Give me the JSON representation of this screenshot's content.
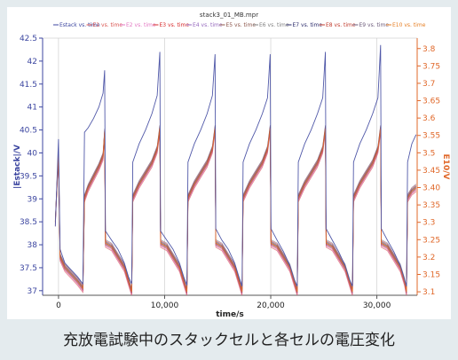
{
  "figure": {
    "caption": "充放電試験中のスタックセルと各セルの電圧変化"
  },
  "colors": {
    "left_axis": "#3c46a0",
    "right_axis": "#e0682a",
    "stack_line": "#5058a8",
    "grid": "#c8c8c8"
  },
  "chart_data": {
    "type": "line",
    "title": "stack3_01_MB.mpr",
    "xlabel": "time/s",
    "ylabel": "|Estack|/V",
    "y2label": "E10/V",
    "xlim": [
      -1500,
      33800
    ],
    "ylim": [
      36.9,
      42.5
    ],
    "y2lim": [
      3.09,
      3.83
    ],
    "xticks": [
      0,
      10000,
      20000,
      30000
    ],
    "xtick_labels": [
      "0",
      "10,000",
      "20,000",
      "30,000"
    ],
    "yticks": [
      37,
      37.5,
      38,
      38.5,
      39,
      39.5,
      40,
      40.5,
      41,
      41.5,
      42,
      42.5
    ],
    "ytick_labels": [
      "37",
      "37.5",
      "38",
      "38.5",
      "39",
      "39.5",
      "40",
      "40.5",
      "41",
      "41.5",
      "42",
      "42.5"
    ],
    "y2ticks": [
      3.1,
      3.15,
      3.2,
      3.25,
      3.3,
      3.35,
      3.4,
      3.45,
      3.5,
      3.55,
      3.6,
      3.65,
      3.7,
      3.75,
      3.8
    ],
    "y2tick_labels": [
      "3.1",
      "3.15",
      "3.2",
      "3.25",
      "3.3",
      "3.35",
      "3.40",
      "3.45",
      "3.5",
      "3.55",
      "3.6",
      "3.65",
      "3.7",
      "3.75",
      "3.8"
    ],
    "grid": true,
    "legend_position": "top",
    "legend": [
      {
        "name": "Estack vs. time",
        "color": "#3c46a0"
      },
      {
        "name": "E1 vs. time",
        "color": "#d9534f"
      },
      {
        "name": "E2 vs. time",
        "color": "#e377c2"
      },
      {
        "name": "E3 vs. time",
        "color": "#d62728"
      },
      {
        "name": "E4 vs. time",
        "color": "#9467bd"
      },
      {
        "name": "E5 vs. time",
        "color": "#8c564b"
      },
      {
        "name": "E6 vs. time",
        "color": "#7f7f7f"
      },
      {
        "name": "E7 vs. time",
        "color": "#2a2a6a"
      },
      {
        "name": "E8 vs. time",
        "color": "#c0392b"
      },
      {
        "name": "E9 vs. time",
        "color": "#6c5b7b"
      },
      {
        "name": "E10 vs. time",
        "color": "#e67e22"
      }
    ],
    "series": [
      {
        "name": "Estack vs. time",
        "axis": "left",
        "points": [
          [
            -300,
            38.4
          ],
          [
            0,
            40.3
          ],
          [
            150,
            37.9
          ],
          [
            600,
            37.6
          ],
          [
            1200,
            37.45
          ],
          [
            1800,
            37.3
          ],
          [
            2300,
            37.15
          ],
          [
            2450,
            40.45
          ],
          [
            2800,
            40.55
          ],
          [
            3300,
            40.75
          ],
          [
            3800,
            41.0
          ],
          [
            4200,
            41.3
          ],
          [
            4350,
            41.8
          ],
          [
            4420,
            38.3
          ],
          [
            5000,
            38.1
          ],
          [
            5600,
            37.9
          ],
          [
            6200,
            37.6
          ],
          [
            6600,
            37.3
          ],
          [
            6900,
            37.15
          ],
          [
            7000,
            39.8
          ],
          [
            7600,
            40.2
          ],
          [
            8200,
            40.5
          ],
          [
            8800,
            40.85
          ],
          [
            9300,
            41.25
          ],
          [
            9550,
            42.2
          ],
          [
            9620,
            38.3
          ],
          [
            10200,
            38.1
          ],
          [
            10800,
            37.9
          ],
          [
            11400,
            37.6
          ],
          [
            11800,
            37.3
          ],
          [
            12100,
            37.12
          ],
          [
            12200,
            39.8
          ],
          [
            12800,
            40.2
          ],
          [
            13400,
            40.5
          ],
          [
            14000,
            40.85
          ],
          [
            14500,
            41.25
          ],
          [
            14750,
            42.15
          ],
          [
            14820,
            38.35
          ],
          [
            15400,
            38.1
          ],
          [
            16000,
            37.9
          ],
          [
            16600,
            37.6
          ],
          [
            17000,
            37.3
          ],
          [
            17300,
            37.1
          ],
          [
            17400,
            39.8
          ],
          [
            18000,
            40.2
          ],
          [
            18600,
            40.5
          ],
          [
            19200,
            40.85
          ],
          [
            19700,
            41.2
          ],
          [
            19950,
            42.15
          ],
          [
            20020,
            38.35
          ],
          [
            20600,
            38.1
          ],
          [
            21200,
            37.85
          ],
          [
            21800,
            37.55
          ],
          [
            22200,
            37.25
          ],
          [
            22500,
            37.1
          ],
          [
            22600,
            39.8
          ],
          [
            23200,
            40.2
          ],
          [
            23800,
            40.5
          ],
          [
            24400,
            40.85
          ],
          [
            24900,
            41.2
          ],
          [
            25150,
            42.2
          ],
          [
            25220,
            38.35
          ],
          [
            25800,
            38.1
          ],
          [
            26400,
            37.85
          ],
          [
            27000,
            37.55
          ],
          [
            27400,
            37.25
          ],
          [
            27700,
            37.1
          ],
          [
            27800,
            39.8
          ],
          [
            28400,
            40.2
          ],
          [
            29000,
            40.5
          ],
          [
            29600,
            40.85
          ],
          [
            30100,
            41.2
          ],
          [
            30350,
            42.35
          ],
          [
            30420,
            38.35
          ],
          [
            31000,
            38.1
          ],
          [
            31600,
            37.85
          ],
          [
            32200,
            37.55
          ],
          [
            32600,
            37.25
          ],
          [
            32800,
            37.1
          ],
          [
            32900,
            39.8
          ],
          [
            33300,
            40.2
          ],
          [
            33700,
            40.4
          ]
        ]
      },
      {
        "name": "E10 vs. time",
        "axis": "right",
        "points": [
          [
            -300,
            3.3
          ],
          [
            0,
            3.5
          ],
          [
            150,
            3.2
          ],
          [
            600,
            3.17
          ],
          [
            1200,
            3.15
          ],
          [
            1800,
            3.13
          ],
          [
            2300,
            3.11
          ],
          [
            2450,
            3.37
          ],
          [
            2800,
            3.4
          ],
          [
            3300,
            3.43
          ],
          [
            3800,
            3.46
          ],
          [
            4200,
            3.49
          ],
          [
            4350,
            3.56
          ],
          [
            4420,
            3.24
          ],
          [
            5000,
            3.23
          ],
          [
            5600,
            3.2
          ],
          [
            6200,
            3.17
          ],
          [
            6600,
            3.13
          ],
          [
            6900,
            3.1
          ],
          [
            7000,
            3.37
          ],
          [
            7600,
            3.41
          ],
          [
            8200,
            3.44
          ],
          [
            8800,
            3.47
          ],
          [
            9300,
            3.51
          ],
          [
            9550,
            3.57
          ],
          [
            9620,
            3.24
          ],
          [
            10200,
            3.23
          ],
          [
            10800,
            3.2
          ],
          [
            11400,
            3.17
          ],
          [
            11800,
            3.13
          ],
          [
            12100,
            3.1
          ],
          [
            12200,
            3.37
          ],
          [
            12800,
            3.41
          ],
          [
            13400,
            3.44
          ],
          [
            14000,
            3.47
          ],
          [
            14500,
            3.51
          ],
          [
            14750,
            3.57
          ],
          [
            14820,
            3.24
          ],
          [
            15400,
            3.23
          ],
          [
            16000,
            3.2
          ],
          [
            16600,
            3.17
          ],
          [
            17000,
            3.13
          ],
          [
            17300,
            3.1
          ],
          [
            17400,
            3.37
          ],
          [
            18000,
            3.41
          ],
          [
            18600,
            3.44
          ],
          [
            19200,
            3.47
          ],
          [
            19700,
            3.51
          ],
          [
            19950,
            3.57
          ],
          [
            20020,
            3.24
          ],
          [
            20600,
            3.23
          ],
          [
            21200,
            3.2
          ],
          [
            21800,
            3.17
          ],
          [
            22200,
            3.13
          ],
          [
            22500,
            3.1
          ],
          [
            22600,
            3.37
          ],
          [
            23200,
            3.41
          ],
          [
            23800,
            3.44
          ],
          [
            24400,
            3.47
          ],
          [
            24900,
            3.51
          ],
          [
            25150,
            3.57
          ],
          [
            25220,
            3.24
          ],
          [
            25800,
            3.23
          ],
          [
            26400,
            3.2
          ],
          [
            27000,
            3.17
          ],
          [
            27400,
            3.13
          ],
          [
            27700,
            3.1
          ],
          [
            27800,
            3.37
          ],
          [
            28400,
            3.41
          ],
          [
            29000,
            3.44
          ],
          [
            29600,
            3.47
          ],
          [
            30100,
            3.51
          ],
          [
            30350,
            3.57
          ],
          [
            30420,
            3.24
          ],
          [
            31000,
            3.23
          ],
          [
            31600,
            3.2
          ],
          [
            32200,
            3.17
          ],
          [
            32600,
            3.13
          ],
          [
            32800,
            3.1
          ],
          [
            32900,
            3.37
          ],
          [
            33300,
            3.39
          ],
          [
            33700,
            3.4
          ]
        ]
      }
    ]
  }
}
